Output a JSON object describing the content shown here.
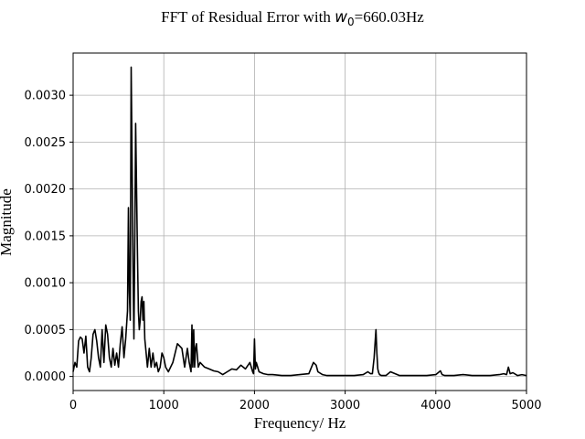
{
  "chart_data": {
    "type": "line",
    "title_prefix": "FFT of Residual Error with ",
    "title_var": "w",
    "title_sub": "0",
    "title_suffix": "=660.03Hz",
    "xlabel": "Frequency/ Hz",
    "ylabel": "Magnitude",
    "xlim": [
      0,
      5000
    ],
    "ylim": [
      -0.00015,
      0.00345
    ],
    "xticks": [
      0,
      1000,
      2000,
      3000,
      4000,
      5000
    ],
    "xtick_labels": [
      "0",
      "1000",
      "2000",
      "3000",
      "4000",
      "5000"
    ],
    "yticks": [
      0,
      0.0005,
      0.001,
      0.0015,
      0.002,
      0.0025,
      0.003
    ],
    "ytick_labels": [
      "0.0000",
      "0.0005",
      "0.0010",
      "0.0015",
      "0.0020",
      "0.0025",
      "0.0030"
    ],
    "grid": true,
    "series_color": "#000000",
    "series": [
      {
        "x": [
          0,
          20,
          40,
          60,
          80,
          100,
          120,
          140,
          160,
          180,
          200,
          220,
          240,
          260,
          280,
          300,
          320,
          340,
          360,
          380,
          400,
          420,
          440,
          460,
          480,
          500,
          520,
          540,
          560,
          580,
          600,
          610,
          620,
          630,
          640,
          650,
          660,
          670,
          680,
          690,
          700,
          710,
          720,
          730,
          740,
          750,
          760,
          770,
          780,
          790,
          800,
          820,
          840,
          860,
          880,
          900,
          920,
          940,
          960,
          980,
          1000,
          1020,
          1050,
          1100,
          1150,
          1200,
          1230,
          1260,
          1280,
          1300,
          1310,
          1320,
          1330,
          1340,
          1350,
          1360,
          1380,
          1400,
          1450,
          1500,
          1550,
          1600,
          1650,
          1700,
          1750,
          1800,
          1850,
          1900,
          1950,
          1980,
          1990,
          2000,
          2010,
          2020,
          2050,
          2100,
          2150,
          2200,
          2300,
          2400,
          2500,
          2600,
          2650,
          2680,
          2700,
          2750,
          2800,
          2900,
          3000,
          3100,
          3200,
          3250,
          3280,
          3300,
          3320,
          3340,
          3350,
          3360,
          3370,
          3380,
          3400,
          3450,
          3500,
          3600,
          3700,
          3800,
          3900,
          4000,
          4050,
          4070,
          4100,
          4200,
          4300,
          4400,
          4500,
          4600,
          4700,
          4750,
          4780,
          4800,
          4820,
          4850,
          4900,
          4950,
          5000
        ],
        "y": [
          5e-05,
          0.00015,
          0.0001,
          0.00038,
          0.00042,
          0.0004,
          0.00025,
          0.00043,
          0.0001,
          5e-05,
          0.0002,
          0.00045,
          0.0005,
          0.00038,
          0.0002,
          0.0001,
          0.0005,
          0.00015,
          0.00055,
          0.00045,
          0.0002,
          0.0001,
          0.0003,
          0.00012,
          0.00025,
          0.0001,
          0.00035,
          0.00053,
          0.0002,
          0.0004,
          0.0007,
          0.0018,
          0.0009,
          0.0006,
          0.0033,
          0.0023,
          0.0012,
          0.0004,
          0.0015,
          0.0027,
          0.002,
          0.0013,
          0.0007,
          0.0005,
          0.0006,
          0.0008,
          0.00085,
          0.0006,
          0.0008,
          0.0004,
          0.0003,
          0.0001,
          0.0003,
          0.0001,
          0.00025,
          0.0001,
          0.00015,
          5e-05,
          0.0001,
          0.00025,
          0.0002,
          0.0001,
          5e-05,
          0.00015,
          0.00035,
          0.0003,
          0.0001,
          0.0003,
          0.00015,
          5e-05,
          0.00055,
          0.0001,
          0.0005,
          0.0001,
          0.0003,
          0.00035,
          0.0001,
          0.00015,
          0.0001,
          8e-05,
          6e-05,
          5e-05,
          2e-05,
          5e-05,
          8e-05,
          7e-05,
          0.00012,
          8e-05,
          0.00015,
          5e-05,
          3e-05,
          0.0004,
          8e-05,
          0.00015,
          5e-05,
          3e-05,
          2e-05,
          2e-05,
          1e-05,
          1e-05,
          2e-05,
          3e-05,
          0.00015,
          0.00012,
          5e-05,
          2e-05,
          1e-05,
          1e-05,
          1e-05,
          1e-05,
          2e-05,
          5e-05,
          3e-05,
          3e-05,
          0.0002,
          0.0005,
          0.00025,
          8e-05,
          4e-05,
          2e-05,
          1e-05,
          1e-05,
          5e-05,
          1e-05,
          1e-05,
          1e-05,
          1e-05,
          2e-05,
          6e-05,
          2e-05,
          1e-05,
          1e-05,
          2e-05,
          1e-05,
          1e-05,
          1e-05,
          2e-05,
          3e-05,
          2e-05,
          0.0001,
          3e-05,
          4e-05,
          1e-05,
          2e-05,
          1e-05
        ]
      }
    ]
  }
}
